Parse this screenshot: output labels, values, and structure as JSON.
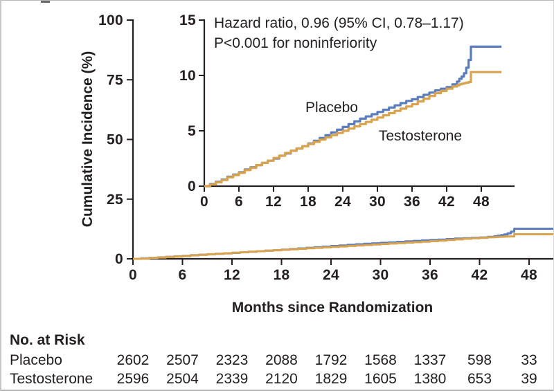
{
  "figure": {
    "background": "#ffffff",
    "frame_color": "#c6c6c6",
    "text_color": "#231f20"
  },
  "chart_data": {
    "type": "line",
    "title": "",
    "xlabel": "Months since Randomization",
    "ylabel": "Cumulative Incidence (%)",
    "annotation": {
      "line1": "Hazard ratio, 0.96 (95% CI, 0.78–1.17)",
      "line2": "P<0.001 for noninferiority"
    },
    "legend_position": "inline-labels-on-inset",
    "main_axis": {
      "xticks": [
        0,
        6,
        12,
        18,
        24,
        30,
        36,
        42,
        48
      ],
      "yticks": [
        0,
        25,
        50,
        75,
        100
      ],
      "xlim": [
        0,
        51
      ],
      "ylim": [
        0,
        100
      ],
      "grid": false
    },
    "inset_axis": {
      "xticks": [
        0,
        6,
        12,
        18,
        24,
        30,
        36,
        42,
        48
      ],
      "yticks": [
        0,
        5,
        10,
        15
      ],
      "xlim": [
        0,
        52
      ],
      "ylim": [
        0,
        15
      ],
      "grid": false
    },
    "x_months": [
      0,
      1,
      2,
      3,
      4,
      5,
      6,
      7,
      8,
      9,
      10,
      11,
      12,
      13,
      14,
      15,
      16,
      17,
      18,
      19,
      20,
      21,
      22,
      23,
      24,
      25,
      26,
      27,
      28,
      29,
      30,
      31,
      32,
      33,
      34,
      35,
      36,
      37,
      38,
      39,
      40,
      41,
      42,
      43,
      43.8,
      44.2,
      44.6,
      45,
      45.4,
      45.8,
      46.2,
      51.5
    ],
    "series": [
      {
        "name": "Placebo",
        "color": "#5b7cbc",
        "values": [
          0,
          0.2,
          0.4,
          0.6,
          0.85,
          1.05,
          1.25,
          1.5,
          1.7,
          1.9,
          2.1,
          2.3,
          2.5,
          2.75,
          2.95,
          3.2,
          3.4,
          3.6,
          3.85,
          4.1,
          4.35,
          4.6,
          4.85,
          5.1,
          5.35,
          5.6,
          5.85,
          6.1,
          6.3,
          6.5,
          6.7,
          6.9,
          7.1,
          7.3,
          7.5,
          7.7,
          7.85,
          8.05,
          8.25,
          8.45,
          8.65,
          8.8,
          8.95,
          9.2,
          9.45,
          9.7,
          9.9,
          10.2,
          10.7,
          11.4,
          12.6,
          12.6
        ]
      },
      {
        "name": "Testosterone",
        "color": "#d9a24c",
        "values": [
          0,
          0.15,
          0.35,
          0.55,
          0.8,
          1.0,
          1.2,
          1.45,
          1.65,
          1.9,
          2.1,
          2.3,
          2.55,
          2.75,
          3.0,
          3.2,
          3.4,
          3.6,
          3.8,
          4.0,
          4.2,
          4.4,
          4.6,
          4.8,
          5.0,
          5.2,
          5.4,
          5.6,
          5.8,
          6.0,
          6.2,
          6.4,
          6.6,
          6.8,
          7.0,
          7.2,
          7.4,
          7.65,
          7.9,
          8.15,
          8.4,
          8.6,
          8.8,
          9.0,
          9.1,
          9.2,
          9.25,
          9.3,
          9.35,
          9.4,
          10.3,
          10.3
        ]
      }
    ]
  },
  "risk_table": {
    "title": "No. at Risk",
    "columns_months": [
      0,
      6,
      12,
      18,
      24,
      30,
      36,
      42,
      48
    ],
    "rows": [
      {
        "label": "Placebo",
        "values": [
          "2602",
          "2507",
          "2323",
          "2088",
          "1792",
          "1568",
          "1337",
          "598",
          "33"
        ]
      },
      {
        "label": "Testosterone",
        "values": [
          "2596",
          "2504",
          "2339",
          "2120",
          "1829",
          "1605",
          "1380",
          "653",
          "39"
        ]
      }
    ]
  }
}
